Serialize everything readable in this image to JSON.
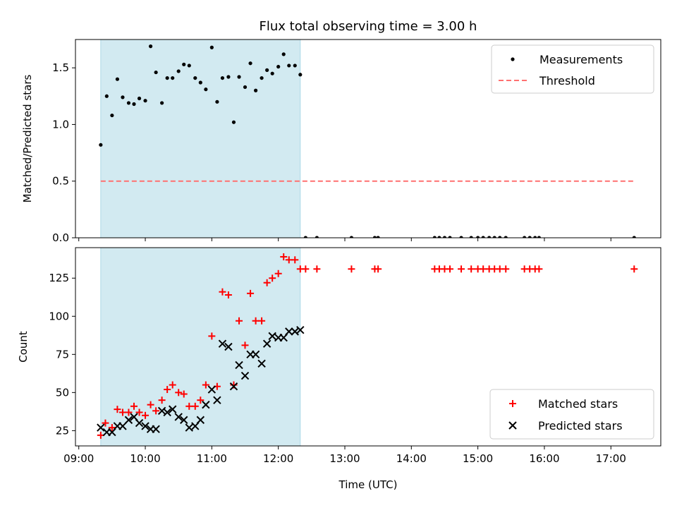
{
  "chart_data": {
    "title": "Flux total observing time = 3.00 h",
    "xlabel": "Time (UTC)",
    "x_ticks": [
      "09:00",
      "10:00",
      "11:00",
      "12:00",
      "13:00",
      "14:00",
      "15:00",
      "16:00",
      "17:00"
    ],
    "x_range_hours": [
      8.95,
      17.75
    ],
    "shaded_interval_hours": [
      9.33,
      12.33
    ],
    "shade_color": "#add8e6",
    "top": {
      "type": "scatter",
      "ylabel": "Matched/Predicted stars",
      "ylim": [
        0,
        1.75
      ],
      "y_ticks": [
        "0.0",
        "0.5",
        "1.0",
        "1.5"
      ],
      "legend": [
        "Measurements",
        "Threshold"
      ],
      "threshold": {
        "value": 0.5,
        "x_range": [
          9.33,
          17.35
        ],
        "color": "#ff7070"
      },
      "x": [
        9.33,
        9.42,
        9.5,
        9.58,
        9.66,
        9.75,
        9.83,
        9.91,
        10.0,
        10.08,
        10.16,
        10.25,
        10.33,
        10.41,
        10.5,
        10.58,
        10.66,
        10.75,
        10.83,
        10.91,
        11.0,
        11.08,
        11.16,
        11.25,
        11.33,
        11.41,
        11.5,
        11.58,
        11.66,
        11.75,
        11.83,
        11.91,
        12.0,
        12.08,
        12.16,
        12.25,
        12.33,
        12.41,
        12.58,
        13.1,
        13.45,
        13.5,
        14.35,
        14.42,
        14.5,
        14.58,
        14.75,
        14.9,
        15.0,
        15.08,
        15.17,
        15.25,
        15.33,
        15.42,
        15.7,
        15.78,
        15.86,
        15.92,
        17.35
      ],
      "y": [
        0.82,
        1.25,
        1.08,
        1.4,
        1.24,
        1.19,
        1.18,
        1.23,
        1.21,
        1.69,
        1.46,
        1.19,
        1.41,
        1.41,
        1.47,
        1.53,
        1.52,
        1.41,
        1.37,
        1.31,
        1.68,
        1.2,
        1.41,
        1.42,
        1.02,
        1.42,
        1.33,
        1.54,
        1.3,
        1.41,
        1.48,
        1.45,
        1.51,
        1.62,
        1.52,
        1.52,
        1.44,
        0,
        0,
        0,
        0,
        0,
        0,
        0,
        0,
        0,
        0,
        0,
        0,
        0,
        0,
        0,
        0,
        0,
        0,
        0,
        0,
        0,
        0
      ],
      "color": "#000000"
    },
    "bottom": {
      "type": "scatter",
      "ylabel": "Count",
      "ylim": [
        15,
        145
      ],
      "y_ticks": [
        "25",
        "50",
        "75",
        "100",
        "125"
      ],
      "legend": [
        "Matched stars",
        "Predicted stars"
      ],
      "series": [
        {
          "name": "Matched stars",
          "marker": "plus",
          "color": "#ff0000",
          "x": [
            9.33,
            9.4,
            9.5,
            9.58,
            9.66,
            9.75,
            9.83,
            9.91,
            10.0,
            10.08,
            10.16,
            10.25,
            10.33,
            10.41,
            10.5,
            10.58,
            10.66,
            10.75,
            10.83,
            10.91,
            11.0,
            11.08,
            11.16,
            11.25,
            11.33,
            11.41,
            11.5,
            11.58,
            11.66,
            11.75,
            11.83,
            11.91,
            12.0,
            12.08,
            12.16,
            12.25,
            12.33,
            12.41,
            12.58,
            13.1,
            13.45,
            13.5,
            14.35,
            14.42,
            14.5,
            14.58,
            14.75,
            14.9,
            15.0,
            15.08,
            15.17,
            15.25,
            15.33,
            15.42,
            15.7,
            15.78,
            15.86,
            15.92,
            17.35
          ],
          "y": [
            22,
            30,
            27,
            39,
            37,
            37,
            41,
            37,
            35,
            42,
            38,
            45,
            52,
            55,
            50,
            49,
            41,
            41,
            45,
            55,
            87,
            54,
            116,
            114,
            55,
            97,
            81,
            115,
            97,
            97,
            122,
            125,
            128,
            139,
            137,
            137,
            131,
            131,
            131,
            131,
            131,
            131,
            131,
            131,
            131,
            131,
            131,
            131,
            131,
            131,
            131,
            131,
            131,
            131,
            131,
            131,
            131,
            131,
            131
          ]
        },
        {
          "name": "Predicted stars",
          "marker": "x",
          "color": "#000000",
          "x": [
            9.33,
            9.42,
            9.5,
            9.58,
            9.66,
            9.75,
            9.83,
            9.91,
            10.0,
            10.08,
            10.16,
            10.25,
            10.33,
            10.41,
            10.5,
            10.58,
            10.66,
            10.75,
            10.83,
            10.91,
            11.0,
            11.08,
            11.16,
            11.25,
            11.33,
            11.41,
            11.5,
            11.58,
            11.66,
            11.75,
            11.83,
            11.91,
            12.0,
            12.08,
            12.16,
            12.25,
            12.33
          ],
          "y": [
            27,
            24,
            24,
            28,
            28,
            32,
            34,
            30,
            28,
            26,
            26,
            38,
            37,
            39,
            34,
            32,
            27,
            28,
            32,
            42,
            52,
            45,
            82,
            80,
            54,
            68,
            61,
            75,
            75,
            69,
            82,
            87,
            86,
            86,
            90,
            90,
            91
          ]
        }
      ]
    }
  }
}
